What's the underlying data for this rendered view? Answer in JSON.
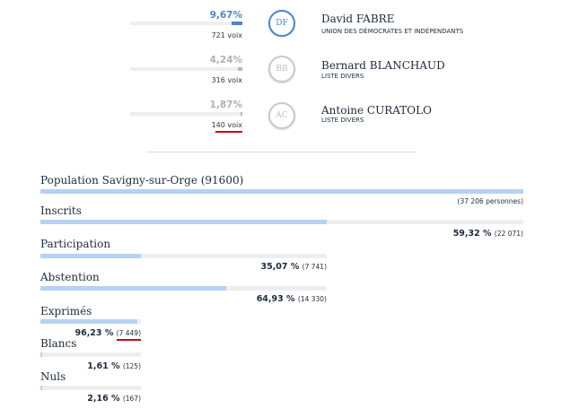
{
  "candidates": [
    {
      "percent": "9,67%",
      "fraction": 0.0967,
      "votes": "721 voix",
      "initials": "DF",
      "name": "David FABRE",
      "party": "UNION DES DÉMOCRATES ET INDÉPENDANTS",
      "color": "#4a86c8"
    },
    {
      "percent": "4,24%",
      "fraction": 0.0424,
      "votes": "316 voix",
      "initials": "BB",
      "name": "Bernard BLANCHAUD",
      "party": "LISTE DIVERS",
      "color": "#b8b8b8"
    },
    {
      "percent": "1,87%",
      "fraction": 0.0187,
      "votes": "140 voix",
      "initials": "AC",
      "name": "Antoine CURATOLO",
      "party": "LISTE DIVERS",
      "color": "#b8b8b8"
    }
  ],
  "stats": {
    "population": {
      "label": "Population Savigny-sur-Orge (91600)",
      "count": "(37 206 personnes)",
      "fraction": 1.0
    },
    "inscrits": {
      "label": "Inscrits",
      "percent": "59,32 %",
      "count": "(22 071)",
      "fraction": 0.5932
    },
    "participation": {
      "label": "Participation",
      "percent": "35,07 %",
      "count": "(7 741)",
      "fraction": 0.3507
    },
    "abstention": {
      "label": "Abstention",
      "percent": "64,93 %",
      "count": "(14 330)",
      "fraction": 0.6493
    },
    "exprimes": {
      "label": "Exprimés",
      "percent": "96,23 %",
      "count": "(7 449)",
      "fraction": 0.9623
    },
    "blancs": {
      "label": "Blancs",
      "percent": "1,61 %",
      "count": "(125)",
      "fraction": 0.0161
    },
    "nuls": {
      "label": "Nuls",
      "percent": "2,16 %",
      "count": "(167)",
      "fraction": 0.0216
    }
  },
  "colors": {
    "accent": "#4a86c8",
    "bar_fill": "#b6d2f2",
    "track": "#eeeeee",
    "highlight": "#d0021b"
  }
}
